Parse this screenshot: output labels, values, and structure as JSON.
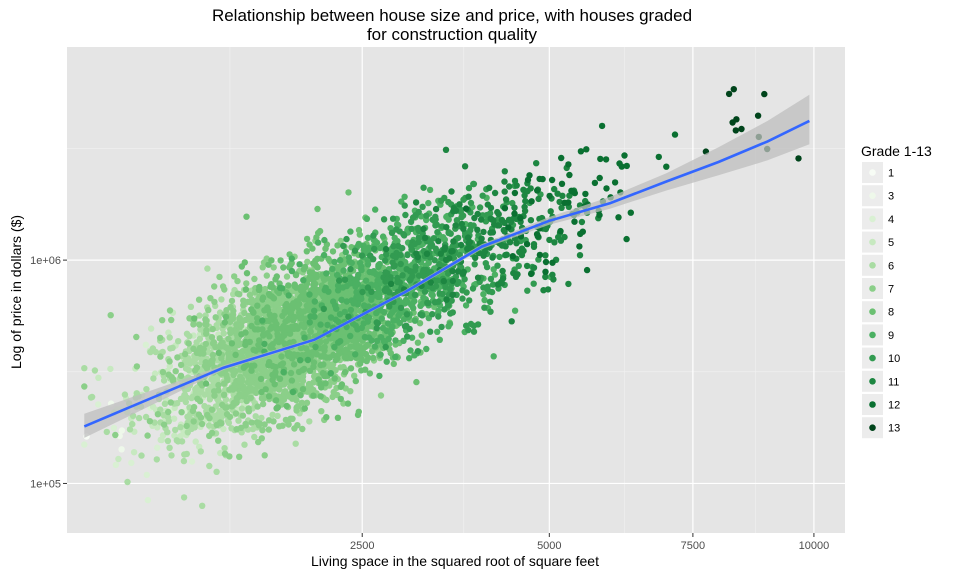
{
  "chart_data": {
    "type": "scatter",
    "title_lines": [
      "Relationship between house size and price, with houses graded",
      "for construction quality"
    ],
    "xlabel": "Living space in the squared root of square feet",
    "ylabel": "Log of price in dollars ($)",
    "x_scale": "sqrt",
    "y_scale": "log10",
    "xlim": [
      300,
      10700
    ],
    "ylim": [
      60000,
      9000000
    ],
    "x_ticks": [
      {
        "value": 2500,
        "label": "2500"
      },
      {
        "value": 5000,
        "label": "5000"
      },
      {
        "value": 7500,
        "label": "7500"
      },
      {
        "value": 10000,
        "label": "10000"
      }
    ],
    "y_ticks": [
      {
        "value": 100000,
        "label": "1e+05"
      },
      {
        "value": 1000000,
        "label": "1e+06"
      }
    ],
    "grid": true,
    "legend": {
      "title": "Grade 1-13",
      "position": "right",
      "items": [
        {
          "label": "1",
          "color": "#f7fcf5"
        },
        {
          "label": "3",
          "color": "#eef8ea"
        },
        {
          "label": "4",
          "color": "#d9f0d3"
        },
        {
          "label": "5",
          "color": "#c7e9c0"
        },
        {
          "label": "6",
          "color": "#a9dca3"
        },
        {
          "label": "7",
          "color": "#8bcf89"
        },
        {
          "label": "8",
          "color": "#6bc072"
        },
        {
          "label": "9",
          "color": "#4bb062"
        },
        {
          "label": "10",
          "color": "#329b51"
        },
        {
          "label": "11",
          "color": "#1d8641"
        },
        {
          "label": "12",
          "color": "#0a7031"
        },
        {
          "label": "13",
          "color": "#00441b"
        }
      ]
    },
    "smooth_line": {
      "color": "#3366ff",
      "band_color": "#bdbdbd",
      "points": [
        {
          "x": 370,
          "y": 180000,
          "lo": 160000,
          "hi": 205000
        },
        {
          "x": 1200,
          "y": 330000,
          "lo": 322000,
          "hi": 338000
        },
        {
          "x": 2000,
          "y": 440000,
          "lo": 432000,
          "hi": 448000
        },
        {
          "x": 3000,
          "y": 720000,
          "lo": 705000,
          "hi": 735000
        },
        {
          "x": 4000,
          "y": 1150000,
          "lo": 1120000,
          "hi": 1180000
        },
        {
          "x": 5000,
          "y": 1500000,
          "lo": 1440000,
          "hi": 1560000
        },
        {
          "x": 6000,
          "y": 1800000,
          "lo": 1700000,
          "hi": 1920000
        },
        {
          "x": 7000,
          "y": 2250000,
          "lo": 2050000,
          "hi": 2450000
        },
        {
          "x": 8000,
          "y": 2750000,
          "lo": 2400000,
          "hi": 3200000
        },
        {
          "x": 9000,
          "y": 3400000,
          "lo": 2800000,
          "hi": 4200000
        },
        {
          "x": 9900,
          "y": 4200000,
          "lo": 3300000,
          "hi": 5500000
        }
      ]
    },
    "grade_clusters": [
      {
        "grade": "1",
        "count": 1,
        "x_center": 380,
        "x_spread": 0,
        "log_price_center": 5.15,
        "log_price_spread": 0
      },
      {
        "grade": "3",
        "count": 4,
        "x_center": 520,
        "x_spread": 120,
        "log_price_center": 5.05,
        "log_price_spread": 0.12
      },
      {
        "grade": "4",
        "count": 25,
        "x_center": 750,
        "x_spread": 350,
        "log_price_center": 5.25,
        "log_price_spread": 0.15
      },
      {
        "grade": "5",
        "count": 120,
        "x_center": 1000,
        "x_spread": 450,
        "log_price_center": 5.35,
        "log_price_spread": 0.15
      },
      {
        "grade": "6",
        "count": 550,
        "x_center": 1200,
        "x_spread": 500,
        "log_price_center": 5.45,
        "log_price_spread": 0.15
      },
      {
        "grade": "7",
        "count": 1400,
        "x_center": 1700,
        "x_spread": 650,
        "log_price_center": 5.6,
        "log_price_spread": 0.15
      },
      {
        "grade": "8",
        "count": 900,
        "x_center": 2200,
        "x_spread": 750,
        "log_price_center": 5.78,
        "log_price_spread": 0.15
      },
      {
        "grade": "9",
        "count": 520,
        "x_center": 2900,
        "x_spread": 900,
        "log_price_center": 5.95,
        "log_price_spread": 0.14
      },
      {
        "grade": "10",
        "count": 320,
        "x_center": 3500,
        "x_spread": 1000,
        "log_price_center": 6.08,
        "log_price_spread": 0.14
      },
      {
        "grade": "11",
        "count": 190,
        "x_center": 4300,
        "x_spread": 1150,
        "log_price_center": 6.23,
        "log_price_spread": 0.14
      },
      {
        "grade": "12",
        "count": 70,
        "x_center": 5300,
        "x_spread": 1400,
        "log_price_center": 6.38,
        "log_price_spread": 0.14
      },
      {
        "grade": "13",
        "count": 12,
        "x_center": 7800,
        "x_spread": 1700,
        "log_price_center": 6.55,
        "log_price_spread": 0.12
      }
    ]
  }
}
